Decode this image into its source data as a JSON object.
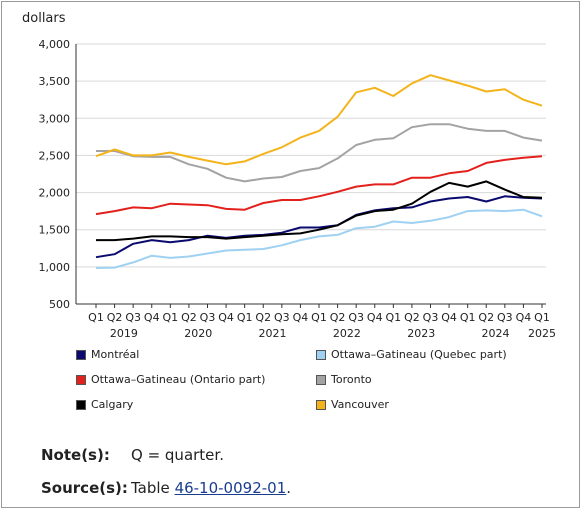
{
  "chart_data": {
    "type": "line",
    "ylabel": "dollars",
    "ylim": [
      500,
      4000
    ],
    "yticks": [
      "500",
      "1,000",
      "1,500",
      "2,000",
      "2,500",
      "3,000",
      "3,500",
      "4,000"
    ],
    "ytick_values": [
      500,
      1000,
      1500,
      2000,
      2500,
      3000,
      3500,
      4000
    ],
    "quarters": [
      "Q1",
      "Q2",
      "Q3",
      "Q4",
      "Q1",
      "Q2",
      "Q3",
      "Q4",
      "Q1",
      "Q2",
      "Q3",
      "Q4",
      "Q1",
      "Q2",
      "Q3",
      "Q4",
      "Q1",
      "Q2",
      "Q3",
      "Q4",
      "Q1",
      "Q2",
      "Q3",
      "Q4",
      "Q1"
    ],
    "years": [
      {
        "label": "2019",
        "start": 0
      },
      {
        "label": "2020",
        "start": 4
      },
      {
        "label": "2021",
        "start": 8
      },
      {
        "label": "2022",
        "start": 12
      },
      {
        "label": "2023",
        "start": 16
      },
      {
        "label": "2024",
        "start": 20
      },
      {
        "label": "2025",
        "start": 24
      }
    ],
    "grid": true,
    "series": [
      {
        "name": "Montréal",
        "color": "#0a0a6e",
        "values": [
          1130,
          1170,
          1310,
          1360,
          1330,
          1360,
          1420,
          1390,
          1420,
          1430,
          1460,
          1530,
          1530,
          1560,
          1700,
          1760,
          1790,
          1800,
          1880,
          1920,
          1940,
          1880,
          1950,
          1930,
          1920
        ]
      },
      {
        "name": "Ottawa–Gatineau (Quebec part)",
        "color": "#9fd1f2",
        "values": [
          985,
          990,
          1060,
          1150,
          1120,
          1140,
          1180,
          1220,
          1230,
          1240,
          1290,
          1360,
          1410,
          1430,
          1520,
          1540,
          1610,
          1590,
          1620,
          1670,
          1750,
          1760,
          1750,
          1770,
          1680
        ]
      },
      {
        "name": "Ottawa–Gatineau (Ontario part)",
        "color": "#e3211c",
        "values": [
          1710,
          1750,
          1800,
          1790,
          1850,
          1840,
          1830,
          1780,
          1770,
          1860,
          1900,
          1900,
          1950,
          2010,
          2080,
          2110,
          2110,
          2200,
          2200,
          2260,
          2290,
          2400,
          2440,
          2470,
          2490
        ]
      },
      {
        "name": "Toronto",
        "color": "#a3a3a3",
        "values": [
          2560,
          2560,
          2490,
          2480,
          2480,
          2380,
          2320,
          2200,
          2150,
          2190,
          2210,
          2290,
          2330,
          2460,
          2640,
          2710,
          2730,
          2880,
          2920,
          2920,
          2860,
          2830,
          2830,
          2740,
          2700
        ]
      },
      {
        "name": "Calgary",
        "color": "#000000",
        "values": [
          1360,
          1360,
          1380,
          1410,
          1410,
          1400,
          1400,
          1380,
          1400,
          1420,
          1440,
          1450,
          1500,
          1560,
          1690,
          1750,
          1770,
          1850,
          2010,
          2130,
          2080,
          2150,
          2040,
          1940,
          1930
        ]
      },
      {
        "name": "Vancouver",
        "color": "#f3b41b",
        "values": [
          2490,
          2580,
          2500,
          2500,
          2540,
          2480,
          2430,
          2380,
          2420,
          2520,
          2610,
          2740,
          2830,
          3020,
          3350,
          3410,
          3300,
          3470,
          3580,
          3510,
          3440,
          3360,
          3390,
          3250,
          3170
        ]
      }
    ]
  },
  "notes": {
    "note_label": "Note(s):",
    "note_text": "Q = quarter.",
    "source_label": "Source(s):",
    "source_prefix": "Table ",
    "source_link": "46-10-0092-01",
    "source_suffix": "."
  }
}
